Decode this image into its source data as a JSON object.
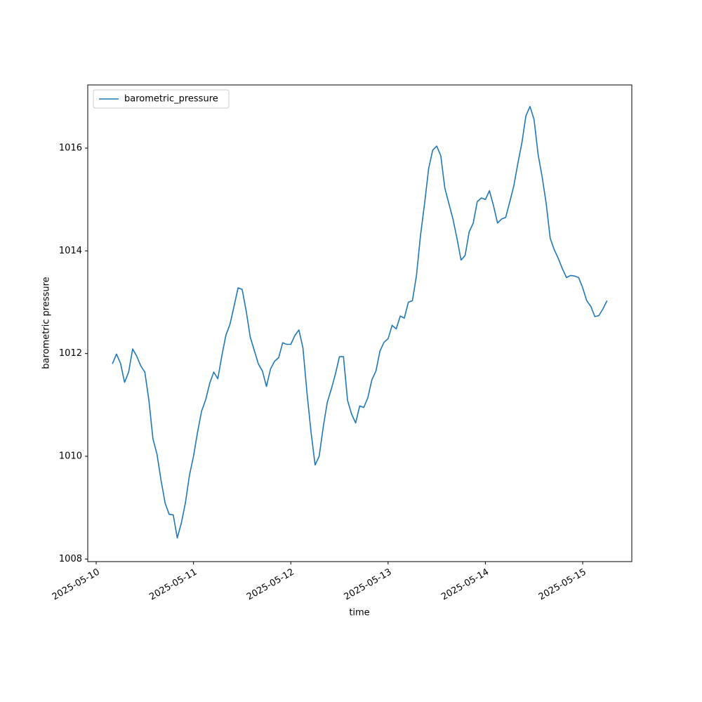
{
  "chart_data": {
    "type": "line",
    "xlabel": "time",
    "ylabel": "barometric pressure",
    "x": [
      "2025-05-10T04:00",
      "2025-05-10T05:00",
      "2025-05-10T06:00",
      "2025-05-10T07:00",
      "2025-05-10T08:00",
      "2025-05-10T09:00",
      "2025-05-10T10:00",
      "2025-05-10T11:00",
      "2025-05-10T12:00",
      "2025-05-10T13:00",
      "2025-05-10T14:00",
      "2025-05-10T15:00",
      "2025-05-10T16:00",
      "2025-05-10T17:00",
      "2025-05-10T18:00",
      "2025-05-10T19:00",
      "2025-05-10T20:00",
      "2025-05-10T21:00",
      "2025-05-10T22:00",
      "2025-05-10T23:00",
      "2025-05-11T00:00",
      "2025-05-11T01:00",
      "2025-05-11T02:00",
      "2025-05-11T03:00",
      "2025-05-11T04:00",
      "2025-05-11T05:00",
      "2025-05-11T06:00",
      "2025-05-11T07:00",
      "2025-05-11T08:00",
      "2025-05-11T09:00",
      "2025-05-11T10:00",
      "2025-05-11T11:00",
      "2025-05-11T12:00",
      "2025-05-11T13:00",
      "2025-05-11T14:00",
      "2025-05-11T15:00",
      "2025-05-11T16:00",
      "2025-05-11T17:00",
      "2025-05-11T18:00",
      "2025-05-11T19:00",
      "2025-05-11T20:00",
      "2025-05-11T21:00",
      "2025-05-11T22:00",
      "2025-05-11T23:00",
      "2025-05-12T00:00",
      "2025-05-12T01:00",
      "2025-05-12T02:00",
      "2025-05-12T03:00",
      "2025-05-12T04:00",
      "2025-05-12T05:00",
      "2025-05-12T06:00",
      "2025-05-12T07:00",
      "2025-05-12T08:00",
      "2025-05-12T09:00",
      "2025-05-12T10:00",
      "2025-05-12T11:00",
      "2025-05-12T12:00",
      "2025-05-12T13:00",
      "2025-05-12T14:00",
      "2025-05-12T15:00",
      "2025-05-12T16:00",
      "2025-05-12T17:00",
      "2025-05-12T18:00",
      "2025-05-12T19:00",
      "2025-05-12T20:00",
      "2025-05-12T21:00",
      "2025-05-12T22:00",
      "2025-05-12T23:00",
      "2025-05-13T00:00",
      "2025-05-13T01:00",
      "2025-05-13T02:00",
      "2025-05-13T03:00",
      "2025-05-13T04:00",
      "2025-05-13T05:00",
      "2025-05-13T06:00",
      "2025-05-13T07:00",
      "2025-05-13T08:00",
      "2025-05-13T09:00",
      "2025-05-13T10:00",
      "2025-05-13T11:00",
      "2025-05-13T12:00",
      "2025-05-13T13:00",
      "2025-05-13T14:00",
      "2025-05-13T15:00",
      "2025-05-13T16:00",
      "2025-05-13T17:00",
      "2025-05-13T18:00",
      "2025-05-13T19:00",
      "2025-05-13T20:00",
      "2025-05-13T21:00",
      "2025-05-13T22:00",
      "2025-05-13T23:00",
      "2025-05-14T00:00",
      "2025-05-14T01:00",
      "2025-05-14T02:00",
      "2025-05-14T03:00",
      "2025-05-14T04:00",
      "2025-05-14T05:00",
      "2025-05-14T06:00",
      "2025-05-14T07:00",
      "2025-05-14T08:00",
      "2025-05-14T09:00",
      "2025-05-14T10:00",
      "2025-05-14T11:00",
      "2025-05-14T12:00",
      "2025-05-14T13:00",
      "2025-05-14T14:00",
      "2025-05-14T15:00",
      "2025-05-14T16:00",
      "2025-05-14T17:00",
      "2025-05-14T18:00",
      "2025-05-14T19:00",
      "2025-05-14T20:00",
      "2025-05-14T21:00",
      "2025-05-14T22:00",
      "2025-05-14T23:00",
      "2025-05-15T00:00",
      "2025-05-15T01:00",
      "2025-05-15T02:00",
      "2025-05-15T03:00",
      "2025-05-15T04:00",
      "2025-05-15T05:00",
      "2025-05-15T06:00"
    ],
    "series": [
      {
        "name": "barometric_pressure",
        "color": "#1f77b4",
        "values": [
          1011.8,
          1011.99,
          1011.81,
          1011.44,
          1011.64,
          1012.09,
          1011.95,
          1011.76,
          1011.64,
          1011.09,
          1010.34,
          1010.04,
          1009.53,
          1009.09,
          1008.87,
          1008.86,
          1008.41,
          1008.7,
          1009.09,
          1009.63,
          1010.0,
          1010.47,
          1010.88,
          1011.1,
          1011.42,
          1011.64,
          1011.51,
          1011.96,
          1012.36,
          1012.57,
          1012.92,
          1013.28,
          1013.25,
          1012.83,
          1012.32,
          1012.06,
          1011.8,
          1011.66,
          1011.36,
          1011.7,
          1011.85,
          1011.92,
          1012.21,
          1012.18,
          1012.18,
          1012.35,
          1012.46,
          1012.11,
          1011.23,
          1010.47,
          1009.83,
          1010.0,
          1010.57,
          1011.05,
          1011.31,
          1011.6,
          1011.94,
          1011.94,
          1011.09,
          1010.82,
          1010.65,
          1010.98,
          1010.95,
          1011.14,
          1011.49,
          1011.66,
          1012.05,
          1012.22,
          1012.29,
          1012.55,
          1012.48,
          1012.73,
          1012.69,
          1013.0,
          1013.03,
          1013.52,
          1014.3,
          1014.92,
          1015.6,
          1015.96,
          1016.04,
          1015.85,
          1015.22,
          1014.92,
          1014.62,
          1014.24,
          1013.82,
          1013.91,
          1014.37,
          1014.54,
          1014.96,
          1015.03,
          1015.0,
          1015.17,
          1014.88,
          1014.54,
          1014.62,
          1014.65,
          1014.95,
          1015.26,
          1015.7,
          1016.1,
          1016.63,
          1016.81,
          1016.56,
          1015.88,
          1015.44,
          1014.92,
          1014.24,
          1014.02,
          1013.85,
          1013.65,
          1013.48,
          1013.52,
          1013.51,
          1013.48,
          1013.28,
          1013.03,
          1012.92,
          1012.72,
          1012.74,
          1012.87,
          1013.03
        ]
      }
    ],
    "xlim": [
      "2025-05-09T21:55",
      "2025-05-15T12:07"
    ],
    "xticks": [
      "2025-05-10",
      "2025-05-11",
      "2025-05-12",
      "2025-05-13",
      "2025-05-14",
      "2025-05-15"
    ],
    "ylim": [
      1007.95,
      1017.23
    ],
    "yticks": [
      1008,
      1010,
      1012,
      1014,
      1016
    ],
    "grid": false,
    "legend": "upper left"
  }
}
